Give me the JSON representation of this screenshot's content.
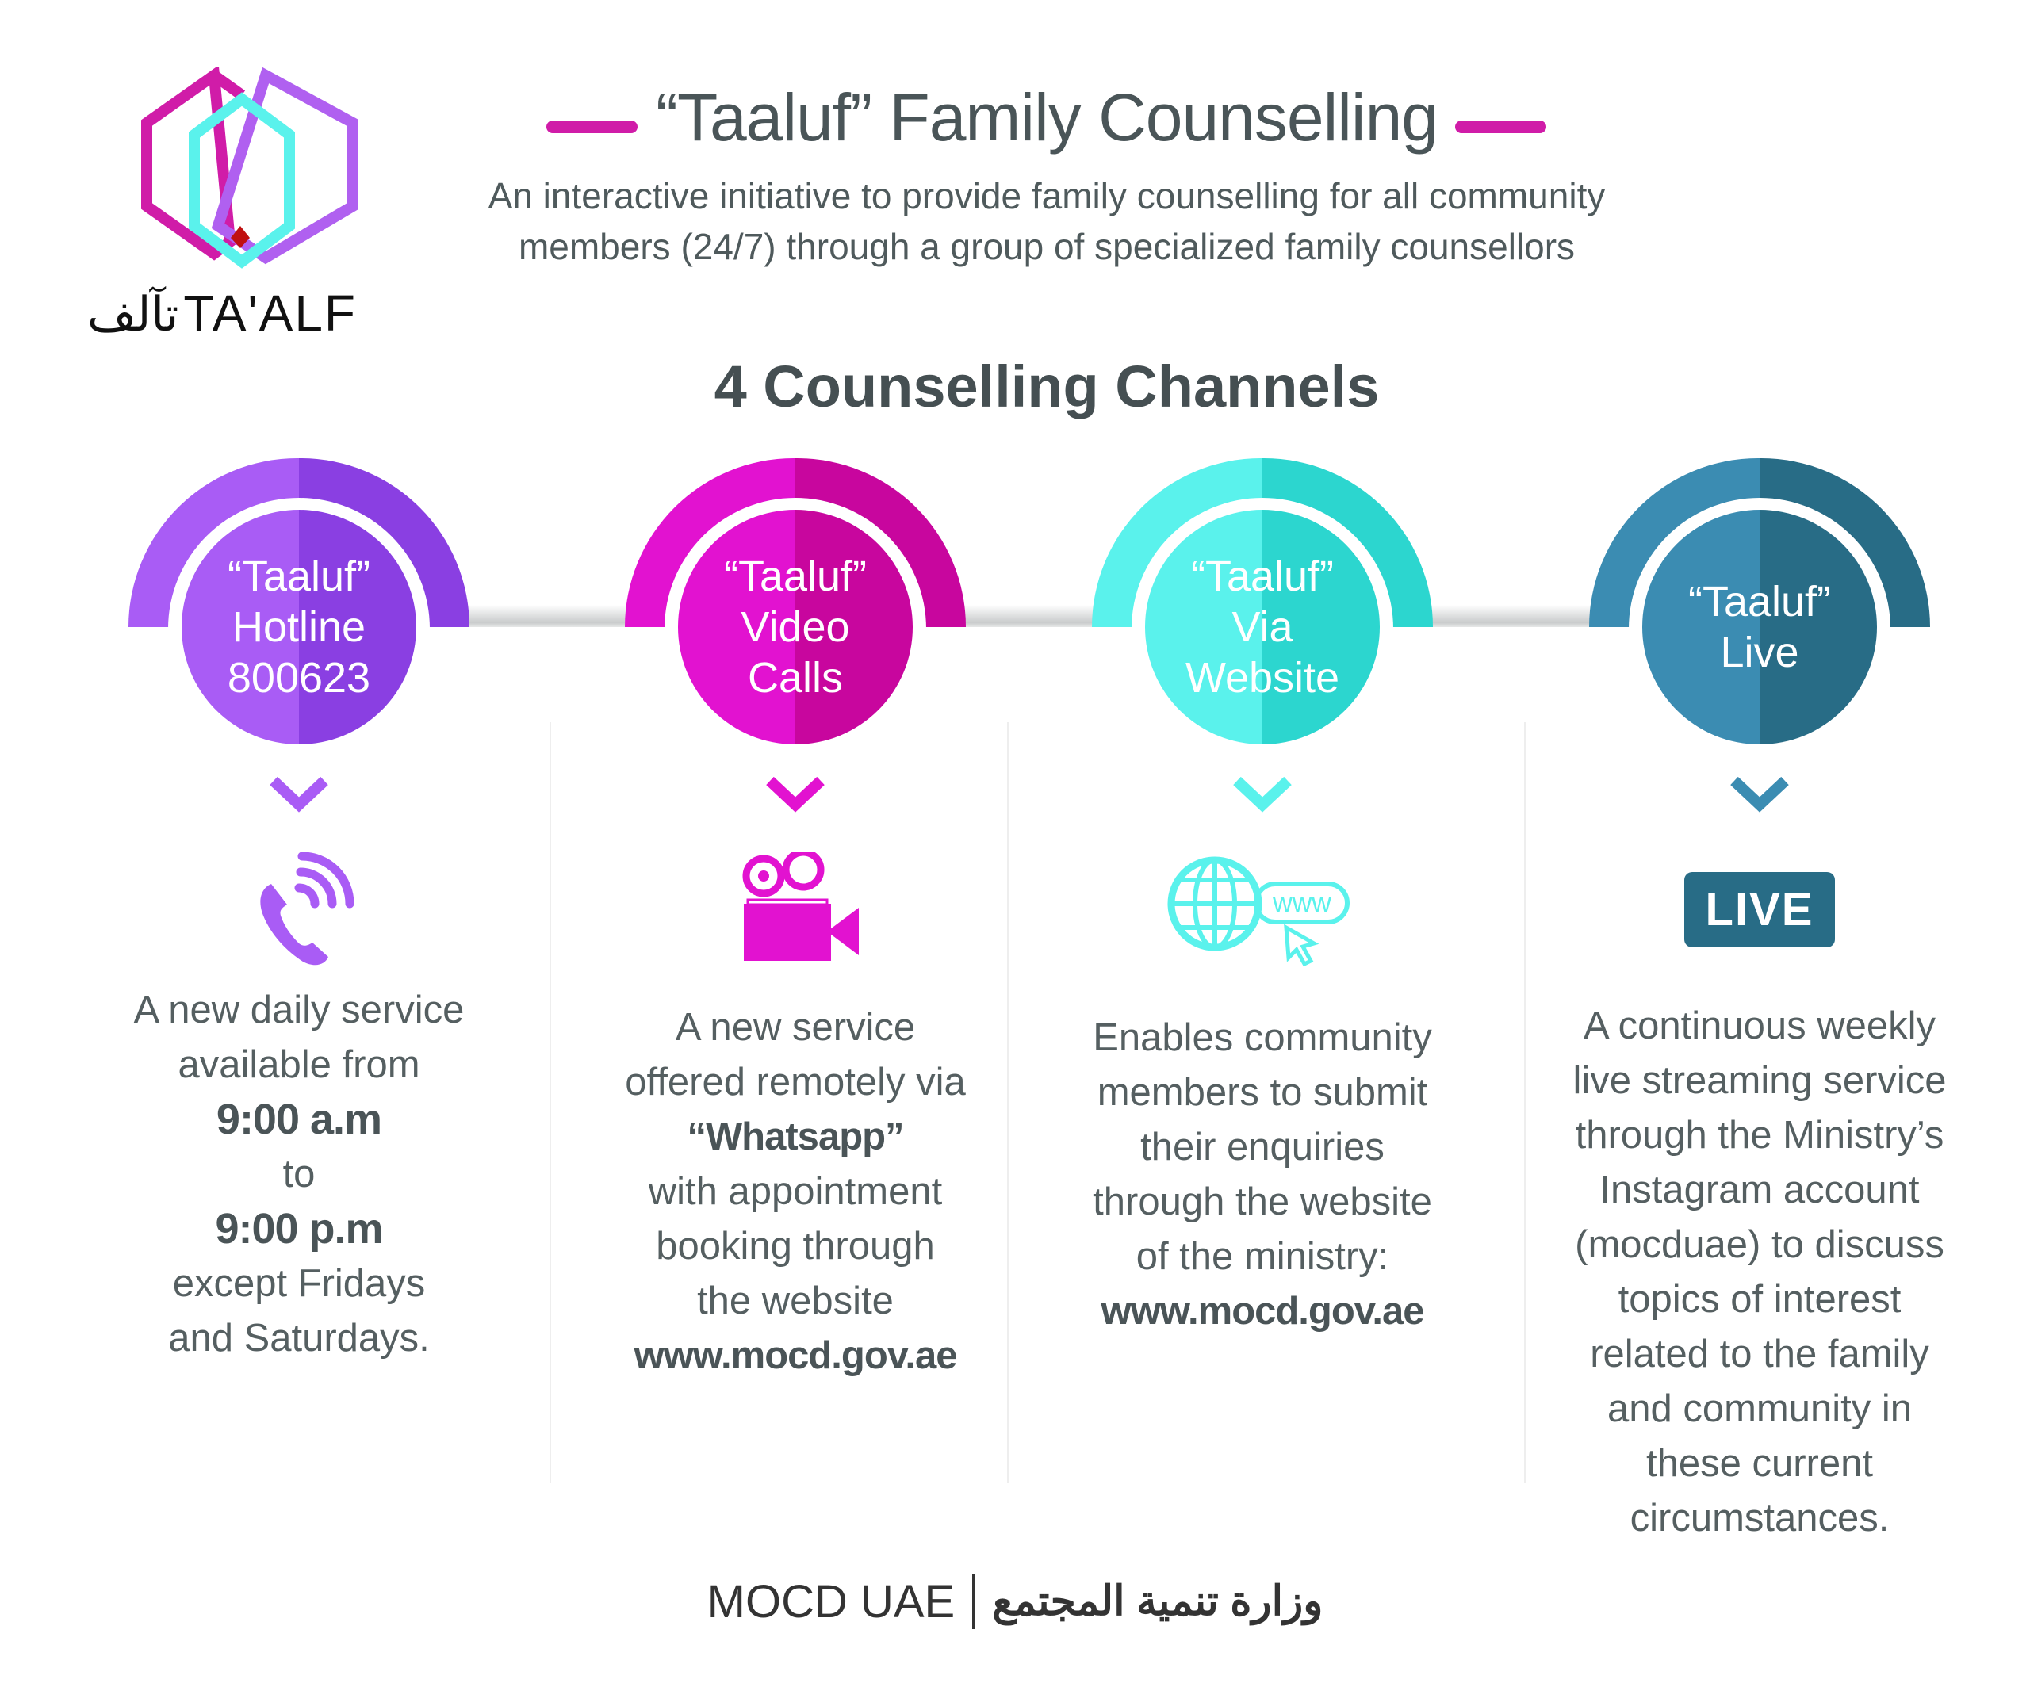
{
  "logo": {
    "latin": "TA'ALF",
    "arabic": "تآلف"
  },
  "header": {
    "title": "“Taaluf” Family Counselling",
    "subtitle_lines": [
      "An interactive initiative to provide family counselling for all community",
      "members (24/7) through a group of specialized family counsellors"
    ]
  },
  "section_title": "4 Counselling Channels",
  "colors": {
    "accent": "#d01ca8",
    "text": "#4f5a5c"
  },
  "channels": [
    {
      "label_lines": [
        "“Taaluf”",
        "Hotline",
        "800623"
      ],
      "icon": "phone-ringing-icon",
      "colors": [
        "#a95cf5",
        "#8a3fe2"
      ],
      "desc": [
        "A new daily service",
        "available from",
        "9:00 a.m",
        "to",
        "9:00 p.m",
        "except Fridays",
        "and Saturdays."
      ]
    },
    {
      "label_lines": [
        "“Taaluf”",
        "Video",
        "Calls"
      ],
      "icon": "video-camera-icon",
      "colors": [
        "#e212d0",
        "#c8069e"
      ],
      "desc": [
        "A new service",
        "offered remotely via",
        "“Whatsapp”",
        "with appointment",
        "booking through",
        "the website",
        "www.mocd.gov.ae"
      ]
    },
    {
      "label_lines": [
        "“Taaluf”",
        "Via",
        "Website"
      ],
      "icon": "globe-www-icon",
      "colors": [
        "#5af2ec",
        "#2cd6cf"
      ],
      "desc": [
        "Enables community",
        "members to submit",
        "their enquiries",
        "through the website",
        "of the ministry:",
        "www.mocd.gov.ae"
      ]
    },
    {
      "label_lines": [
        "“Taaluf”",
        "Live"
      ],
      "icon": "live-badge-icon",
      "live_label": "LIVE",
      "colors": [
        "#3b8cb2",
        "#286c86"
      ],
      "desc": [
        "A continuous weekly",
        "live streaming service",
        "through the Ministry’s",
        "Instagram account",
        "(mocduae) to discuss",
        "topics of interest",
        "related to the family",
        "and community in",
        "these current",
        "circumstances."
      ]
    }
  ],
  "footer": {
    "latin": "MOCD UAE",
    "arabic": "وزارة تنمية المجتمع"
  }
}
